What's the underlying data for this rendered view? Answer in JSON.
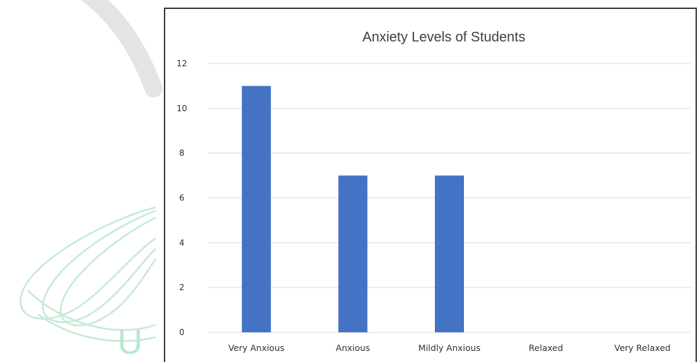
{
  "chart_data": {
    "type": "bar",
    "title": "Anxiety Levels of Students",
    "xlabel": "",
    "ylabel": "",
    "categories": [
      "Very Anxious",
      "Anxious",
      "Mildly Anxious",
      "Relaxed",
      "Very Relaxed"
    ],
    "values": [
      11,
      7,
      7,
      0,
      0
    ],
    "yticks": [
      "0",
      "2",
      "4",
      "6",
      "8",
      "10",
      "12"
    ],
    "ylim": [
      0,
      12
    ],
    "grid": true,
    "legend": "none",
    "bar_color": "#4472c4",
    "grid_color": "#d9d9d9"
  },
  "watermark": {
    "letter": "U",
    "color": "#b9e6cf"
  }
}
